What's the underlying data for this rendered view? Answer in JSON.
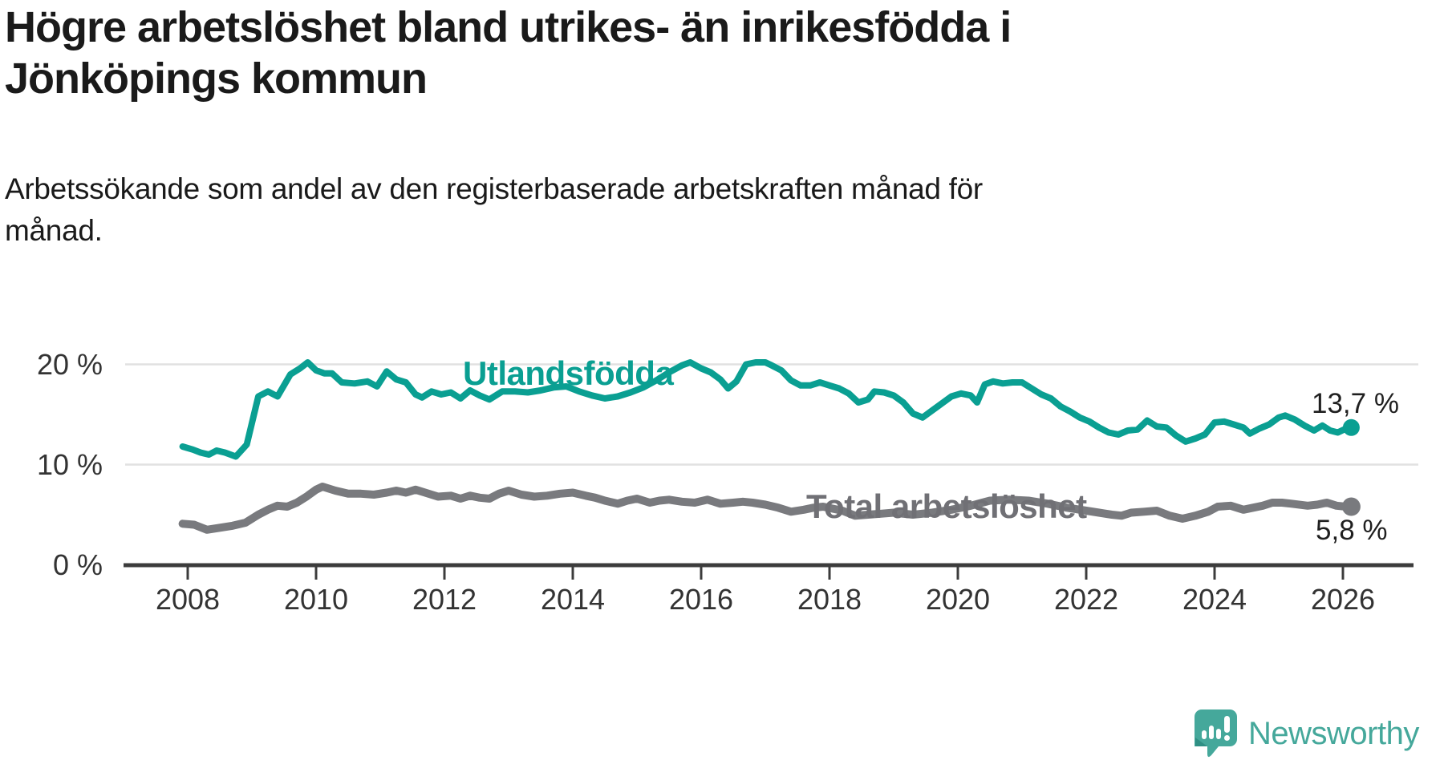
{
  "title_lines": [
    "Högre arbetslöshet bland utrikes- än inrikesfödda i",
    "Jönköpings kommun"
  ],
  "subtitle_lines": [
    "Arbetssökande som andel av den registerbaserade arbetskraften månad för",
    "månad."
  ],
  "logo": {
    "text": "Newsworthy"
  },
  "colors": {
    "series1": "#0a9f92",
    "series2": "#797a7e",
    "grid": "#e1e1e1",
    "axis": "#3c3c3c",
    "label2": "#707075",
    "logo_teal": "#45a89b"
  },
  "chart_data": {
    "type": "line",
    "title": "Högre arbetslöshet bland utrikes- än inrikesfödda i Jönköpings kommun",
    "subtitle": "Arbetssökande som andel av den registerbaserade arbetskraften månad för månad.",
    "xlabel": "",
    "ylabel": "",
    "ylim": [
      0,
      22
    ],
    "grid": "horizontal",
    "legend_position": "inline-labels",
    "yticks": [
      {
        "value": 0,
        "label": "0 %"
      },
      {
        "value": 10,
        "label": "10 %"
      },
      {
        "value": 20,
        "label": "20 %"
      }
    ],
    "xticks": [
      {
        "year": 2008,
        "label": "2008"
      },
      {
        "year": 2010,
        "label": "2010"
      },
      {
        "year": 2012,
        "label": "2012"
      },
      {
        "year": 2014,
        "label": "2014"
      },
      {
        "year": 2016,
        "label": "2016"
      },
      {
        "year": 2018,
        "label": "2018"
      },
      {
        "year": 2020,
        "label": "2020"
      },
      {
        "year": 2022,
        "label": "2022"
      },
      {
        "year": 2024,
        "label": "2024"
      },
      {
        "year": 2026,
        "label": "2026"
      }
    ],
    "series": [
      {
        "name": "Utlandsfödda",
        "color": "#0a9f92",
        "end_label": "13,7 %",
        "end_value": 13.7,
        "points": [
          [
            2007.92,
            11.8
          ],
          [
            2008.08,
            11.5
          ],
          [
            2008.2,
            11.2
          ],
          [
            2008.33,
            11.0
          ],
          [
            2008.45,
            11.4
          ],
          [
            2008.58,
            11.2
          ],
          [
            2008.75,
            10.8
          ],
          [
            2008.92,
            12.0
          ],
          [
            2009.1,
            16.8
          ],
          [
            2009.25,
            17.3
          ],
          [
            2009.4,
            16.8
          ],
          [
            2009.6,
            19.0
          ],
          [
            2009.75,
            19.6
          ],
          [
            2009.87,
            20.2
          ],
          [
            2010.0,
            19.4
          ],
          [
            2010.13,
            19.1
          ],
          [
            2010.25,
            19.1
          ],
          [
            2010.4,
            18.2
          ],
          [
            2010.6,
            18.1
          ],
          [
            2010.8,
            18.3
          ],
          [
            2010.95,
            17.8
          ],
          [
            2011.1,
            19.3
          ],
          [
            2011.25,
            18.5
          ],
          [
            2011.4,
            18.2
          ],
          [
            2011.55,
            17.0
          ],
          [
            2011.65,
            16.7
          ],
          [
            2011.8,
            17.3
          ],
          [
            2011.95,
            17.0
          ],
          [
            2012.1,
            17.2
          ],
          [
            2012.25,
            16.6
          ],
          [
            2012.4,
            17.4
          ],
          [
            2012.55,
            16.9
          ],
          [
            2012.7,
            16.5
          ],
          [
            2012.9,
            17.3
          ],
          [
            2013.1,
            17.3
          ],
          [
            2013.3,
            17.2
          ],
          [
            2013.5,
            17.4
          ],
          [
            2013.7,
            17.7
          ],
          [
            2013.9,
            17.8
          ],
          [
            2014.1,
            17.3
          ],
          [
            2014.3,
            16.9
          ],
          [
            2014.5,
            16.6
          ],
          [
            2014.7,
            16.8
          ],
          [
            2014.9,
            17.2
          ],
          [
            2015.1,
            17.7
          ],
          [
            2015.3,
            18.4
          ],
          [
            2015.5,
            19.2
          ],
          [
            2015.7,
            19.9
          ],
          [
            2015.83,
            20.2
          ],
          [
            2016.0,
            19.6
          ],
          [
            2016.15,
            19.2
          ],
          [
            2016.3,
            18.5
          ],
          [
            2016.42,
            17.6
          ],
          [
            2016.55,
            18.3
          ],
          [
            2016.7,
            20.0
          ],
          [
            2016.85,
            20.2
          ],
          [
            2017.0,
            20.2
          ],
          [
            2017.1,
            19.9
          ],
          [
            2017.25,
            19.4
          ],
          [
            2017.4,
            18.4
          ],
          [
            2017.55,
            17.9
          ],
          [
            2017.7,
            17.9
          ],
          [
            2017.85,
            18.2
          ],
          [
            2018.0,
            17.9
          ],
          [
            2018.15,
            17.6
          ],
          [
            2018.3,
            17.1
          ],
          [
            2018.45,
            16.2
          ],
          [
            2018.6,
            16.5
          ],
          [
            2018.7,
            17.3
          ],
          [
            2018.85,
            17.2
          ],
          [
            2019.0,
            16.9
          ],
          [
            2019.15,
            16.2
          ],
          [
            2019.3,
            15.1
          ],
          [
            2019.45,
            14.7
          ],
          [
            2019.6,
            15.4
          ],
          [
            2019.75,
            16.1
          ],
          [
            2019.9,
            16.8
          ],
          [
            2020.05,
            17.1
          ],
          [
            2020.2,
            16.9
          ],
          [
            2020.3,
            16.2
          ],
          [
            2020.42,
            18.0
          ],
          [
            2020.55,
            18.3
          ],
          [
            2020.7,
            18.1
          ],
          [
            2020.85,
            18.2
          ],
          [
            2021.0,
            18.2
          ],
          [
            2021.15,
            17.6
          ],
          [
            2021.3,
            17.0
          ],
          [
            2021.45,
            16.6
          ],
          [
            2021.6,
            15.8
          ],
          [
            2021.75,
            15.3
          ],
          [
            2021.9,
            14.7
          ],
          [
            2022.05,
            14.3
          ],
          [
            2022.2,
            13.7
          ],
          [
            2022.35,
            13.2
          ],
          [
            2022.5,
            13.0
          ],
          [
            2022.65,
            13.4
          ],
          [
            2022.8,
            13.5
          ],
          [
            2022.95,
            14.4
          ],
          [
            2023.1,
            13.8
          ],
          [
            2023.25,
            13.7
          ],
          [
            2023.4,
            12.9
          ],
          [
            2023.55,
            12.3
          ],
          [
            2023.7,
            12.6
          ],
          [
            2023.85,
            13.0
          ],
          [
            2024.0,
            14.2
          ],
          [
            2024.15,
            14.3
          ],
          [
            2024.3,
            14.0
          ],
          [
            2024.45,
            13.7
          ],
          [
            2024.55,
            13.1
          ],
          [
            2024.7,
            13.6
          ],
          [
            2024.85,
            14.0
          ],
          [
            2025.0,
            14.7
          ],
          [
            2025.1,
            14.9
          ],
          [
            2025.25,
            14.5
          ],
          [
            2025.4,
            13.9
          ],
          [
            2025.55,
            13.4
          ],
          [
            2025.68,
            13.9
          ],
          [
            2025.8,
            13.4
          ],
          [
            2025.92,
            13.2
          ],
          [
            2026.05,
            13.6
          ],
          [
            2026.13,
            13.7
          ]
        ]
      },
      {
        "name": "Total arbetslöshet",
        "color": "#797a7e",
        "end_label": "5,8 %",
        "end_value": 5.8,
        "points": [
          [
            2007.92,
            4.1
          ],
          [
            2008.1,
            4.0
          ],
          [
            2008.3,
            3.5
          ],
          [
            2008.5,
            3.7
          ],
          [
            2008.7,
            3.9
          ],
          [
            2008.9,
            4.2
          ],
          [
            2009.1,
            5.0
          ],
          [
            2009.25,
            5.5
          ],
          [
            2009.4,
            5.9
          ],
          [
            2009.55,
            5.8
          ],
          [
            2009.7,
            6.2
          ],
          [
            2009.85,
            6.8
          ],
          [
            2010.0,
            7.5
          ],
          [
            2010.1,
            7.8
          ],
          [
            2010.3,
            7.4
          ],
          [
            2010.5,
            7.1
          ],
          [
            2010.7,
            7.1
          ],
          [
            2010.9,
            7.0
          ],
          [
            2011.1,
            7.2
          ],
          [
            2011.25,
            7.4
          ],
          [
            2011.4,
            7.2
          ],
          [
            2011.55,
            7.5
          ],
          [
            2011.7,
            7.2
          ],
          [
            2011.9,
            6.8
          ],
          [
            2012.1,
            6.9
          ],
          [
            2012.25,
            6.6
          ],
          [
            2012.4,
            6.9
          ],
          [
            2012.55,
            6.7
          ],
          [
            2012.7,
            6.6
          ],
          [
            2012.85,
            7.1
          ],
          [
            2013.0,
            7.4
          ],
          [
            2013.2,
            7.0
          ],
          [
            2013.4,
            6.8
          ],
          [
            2013.6,
            6.9
          ],
          [
            2013.8,
            7.1
          ],
          [
            2014.0,
            7.2
          ],
          [
            2014.2,
            6.9
          ],
          [
            2014.35,
            6.7
          ],
          [
            2014.5,
            6.4
          ],
          [
            2014.7,
            6.1
          ],
          [
            2014.85,
            6.4
          ],
          [
            2015.0,
            6.6
          ],
          [
            2015.2,
            6.2
          ],
          [
            2015.35,
            6.4
          ],
          [
            2015.5,
            6.5
          ],
          [
            2015.7,
            6.3
          ],
          [
            2015.9,
            6.2
          ],
          [
            2016.1,
            6.5
          ],
          [
            2016.3,
            6.1
          ],
          [
            2016.5,
            6.2
          ],
          [
            2016.65,
            6.3
          ],
          [
            2016.8,
            6.2
          ],
          [
            2017.0,
            6.0
          ],
          [
            2017.2,
            5.7
          ],
          [
            2017.4,
            5.3
          ],
          [
            2017.6,
            5.5
          ],
          [
            2017.75,
            5.7
          ],
          [
            2017.9,
            5.8
          ],
          [
            2018.05,
            5.6
          ],
          [
            2018.2,
            5.4
          ],
          [
            2018.4,
            4.9
          ],
          [
            2018.6,
            5.0
          ],
          [
            2018.8,
            5.1
          ],
          [
            2019.0,
            5.2
          ],
          [
            2019.3,
            5.0
          ],
          [
            2019.6,
            5.2
          ],
          [
            2019.9,
            5.5
          ],
          [
            2020.2,
            5.9
          ],
          [
            2020.5,
            6.4
          ],
          [
            2020.8,
            6.5
          ],
          [
            2021.1,
            6.4
          ],
          [
            2021.4,
            6.1
          ],
          [
            2021.7,
            5.7
          ],
          [
            2022.0,
            5.4
          ],
          [
            2022.2,
            5.2
          ],
          [
            2022.4,
            5.0
          ],
          [
            2022.55,
            4.9
          ],
          [
            2022.7,
            5.2
          ],
          [
            2022.9,
            5.3
          ],
          [
            2023.1,
            5.4
          ],
          [
            2023.3,
            4.9
          ],
          [
            2023.5,
            4.6
          ],
          [
            2023.7,
            4.9
          ],
          [
            2023.9,
            5.3
          ],
          [
            2024.05,
            5.8
          ],
          [
            2024.25,
            5.9
          ],
          [
            2024.45,
            5.5
          ],
          [
            2024.6,
            5.7
          ],
          [
            2024.75,
            5.9
          ],
          [
            2024.9,
            6.2
          ],
          [
            2025.05,
            6.2
          ],
          [
            2025.2,
            6.1
          ],
          [
            2025.45,
            5.9
          ],
          [
            2025.6,
            6.0
          ],
          [
            2025.75,
            6.2
          ],
          [
            2025.9,
            5.9
          ],
          [
            2026.05,
            5.8
          ],
          [
            2026.13,
            5.8
          ]
        ]
      }
    ]
  }
}
